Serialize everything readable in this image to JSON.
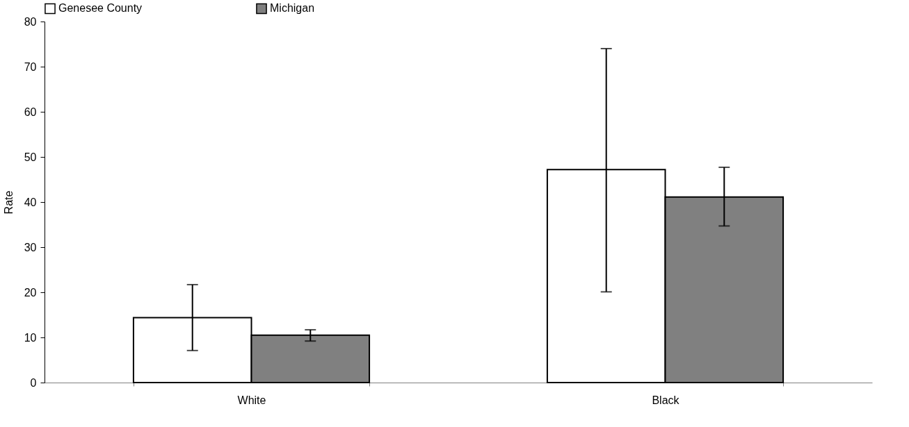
{
  "chart_data": {
    "type": "bar",
    "ylabel": "Rate",
    "categories": [
      "White",
      "Black"
    ],
    "series": [
      {
        "name": "Genesee County",
        "color": "#ffffff",
        "values": [
          14.4,
          47.2
        ],
        "errors": [
          [
            7.1,
            21.7
          ],
          [
            20.1,
            74.0
          ]
        ]
      },
      {
        "name": "Michigan",
        "color": "#808080",
        "values": [
          10.5,
          41.1
        ],
        "errors": [
          [
            9.2,
            11.7
          ],
          [
            34.7,
            47.7
          ]
        ]
      }
    ],
    "ylim": [
      0,
      80
    ],
    "yticks": [
      0,
      10,
      20,
      30,
      40,
      50,
      60,
      70,
      80
    ],
    "grid": false,
    "legend": "top"
  }
}
